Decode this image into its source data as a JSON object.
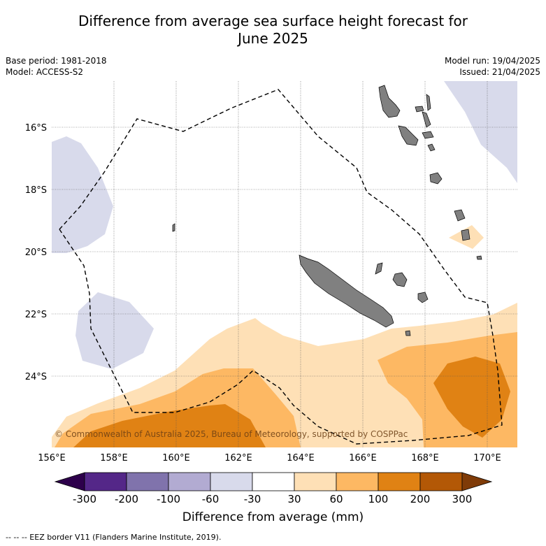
{
  "title_line1": "Difference from average sea surface height forecast for",
  "title_line2": "June 2025",
  "meta": {
    "base_period": "Base period: 1981-2018",
    "model": "Model: ACCESS-S2",
    "model_run": "Model run: 19/04/2025",
    "issued": "Issued: 21/04/2025"
  },
  "map": {
    "lon_labels": [
      "156°E",
      "158°E",
      "160°E",
      "162°E",
      "164°E",
      "166°E",
      "168°E",
      "170°E"
    ],
    "lat_labels": [
      "16°S",
      "18°S",
      "20°S",
      "22°S",
      "24°S"
    ],
    "land_color": "#808080",
    "eez_line": "dashed"
  },
  "colorbar": {
    "tick_labels": [
      "-300",
      "-200",
      "-100",
      "-60",
      "-30",
      "30",
      "60",
      "100",
      "200",
      "300"
    ],
    "colors": [
      "#2d004b",
      "#542788",
      "#8073ac",
      "#b2abd2",
      "#d8daeb",
      "#ffffff",
      "#fee0b6",
      "#fdb863",
      "#e08214",
      "#b35806",
      "#7f3b08"
    ],
    "label": "Difference from average (mm)"
  },
  "credit": "© Commonwealth of Australia 2025, Bureau of Meteorology, supported by COSPPac",
  "footer": "--  --  -- EEZ border V11 (Flanders Marine Institute, 2019)."
}
